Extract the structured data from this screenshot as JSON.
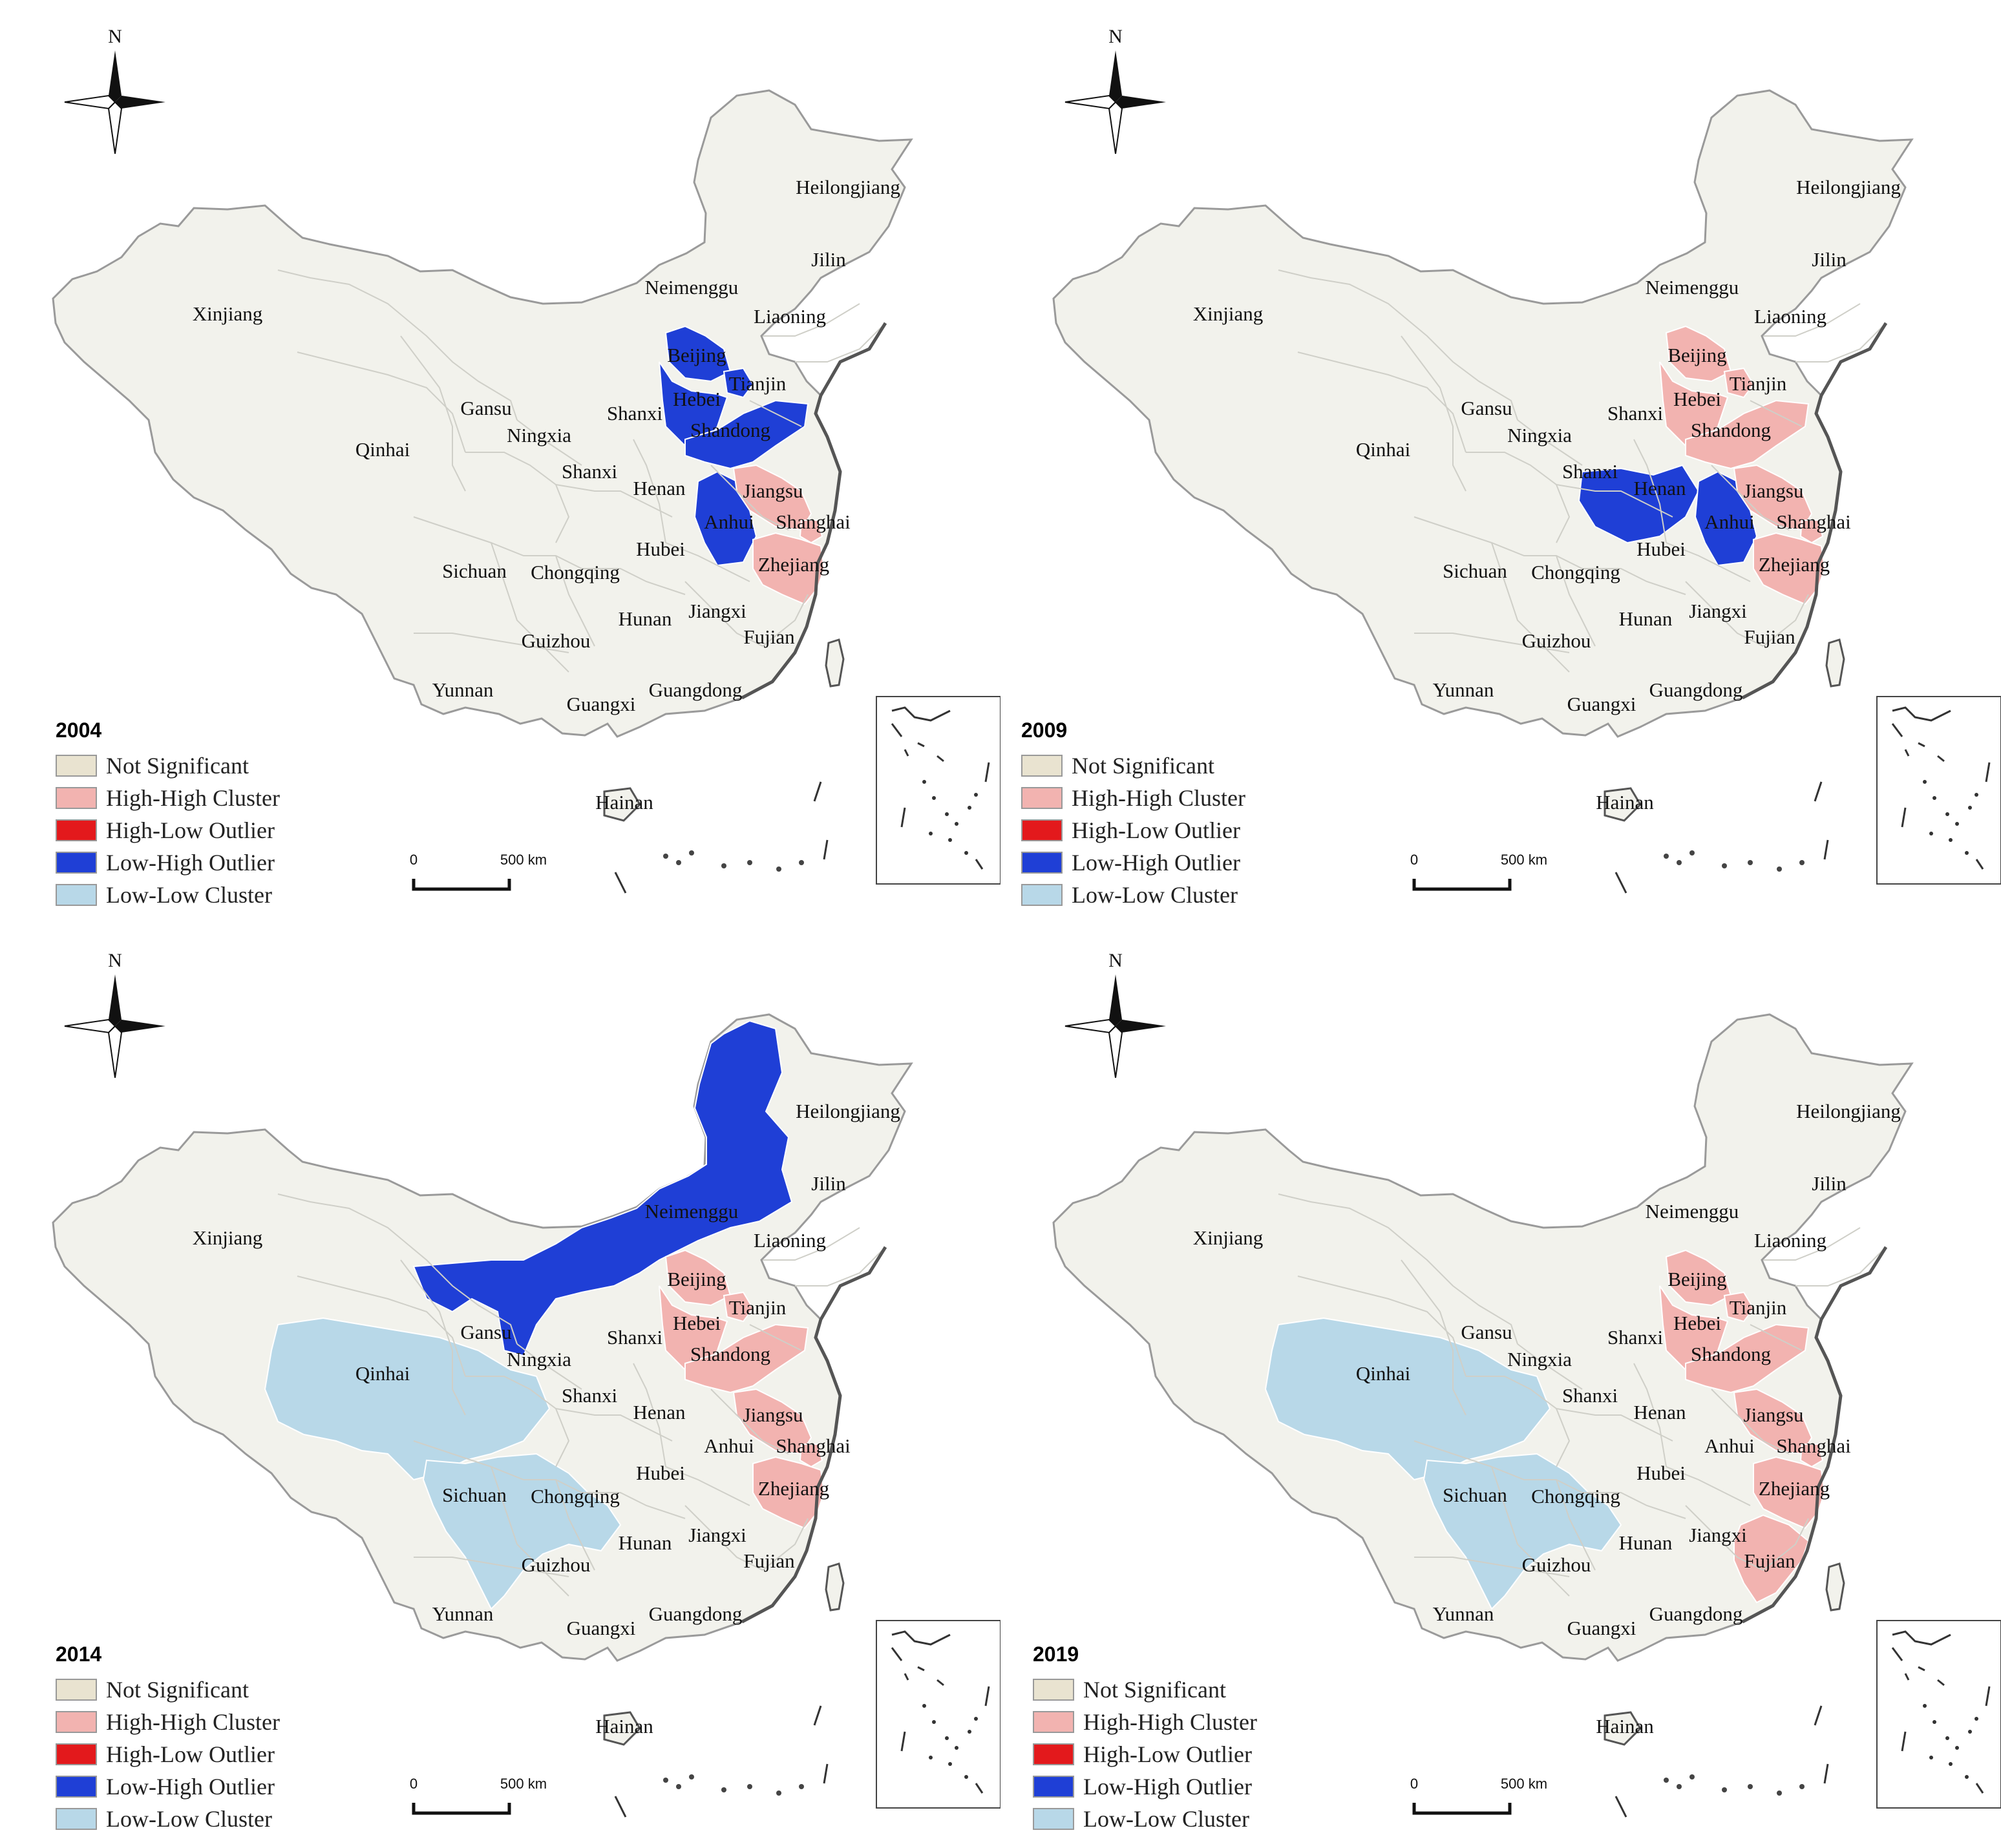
{
  "colors": {
    "not_significant": "#e9e3d0",
    "high_high": "#f2b3b0",
    "high_low": "#e3191c",
    "low_high": "#1f3fd6",
    "low_low": "#b8d8e8",
    "land": "#f2f2ec",
    "border": "#9a9a9a",
    "coast": "#555555"
  },
  "legend": [
    {
      "key": "not_significant",
      "label": "Not Significant"
    },
    {
      "key": "high_high",
      "label": "High-High Cluster"
    },
    {
      "key": "high_low",
      "label": "High-Low Outlier"
    },
    {
      "key": "low_high",
      "label": "Low-High Outlier"
    },
    {
      "key": "low_low",
      "label": "Low-Low Cluster"
    }
  ],
  "north_label": "N",
  "scale": {
    "zero": "0",
    "end": "500 km"
  },
  "provinces": [
    "Heilongjiang",
    "Jilin",
    "Liaoning",
    "Neimenggu",
    "Xinjiang",
    "Beijing",
    "Tianjin",
    "Hebei",
    "Shanxi",
    "Shandong",
    "Gansu",
    "Ningxia",
    "Qinhai",
    "Shanxi",
    "Henan",
    "Jiangsu",
    "Anhui",
    "Shanghai",
    "Hubei",
    "Zhejiang",
    "Sichuan",
    "Chongqing",
    "Hunan",
    "Jiangxi",
    "Guizhou",
    "Fujian",
    "Yunnan",
    "Guangxi",
    "Guangdong",
    "Hainan"
  ],
  "panels": [
    {
      "year": "2004",
      "classes": {
        "Beijing": "low_high",
        "Hebei": "low_high",
        "Tianjin": "low_high",
        "Shandong": "low_high",
        "Anhui": "low_high",
        "Jiangsu": "high_high",
        "Shanghai": "high_high",
        "Zhejiang": "high_high"
      }
    },
    {
      "year": "2009",
      "classes": {
        "Beijing": "high_high",
        "Hebei": "high_high",
        "Tianjin": "high_high",
        "Shandong": "high_high",
        "Henan": "low_high",
        "Anhui": "low_high",
        "Jiangsu": "high_high",
        "Shanghai": "high_high",
        "Zhejiang": "high_high"
      }
    },
    {
      "year": "2014",
      "classes": {
        "Neimenggu": "low_high",
        "Qinhai": "low_low",
        "Sichuan": "low_low",
        "Beijing": "high_high",
        "Hebei": "high_high",
        "Tianjin": "high_high",
        "Shandong": "high_high",
        "Jiangsu": "high_high",
        "Shanghai": "high_high",
        "Zhejiang": "high_high"
      }
    },
    {
      "year": "2019",
      "classes": {
        "Qinhai": "low_low",
        "Sichuan": "low_low",
        "Beijing": "high_high",
        "Hebei": "high_high",
        "Tianjin": "high_high",
        "Shandong": "high_high",
        "Jiangsu": "high_high",
        "Shanghai": "high_high",
        "Zhejiang": "high_high",
        "Fujian": "high_high"
      }
    }
  ]
}
